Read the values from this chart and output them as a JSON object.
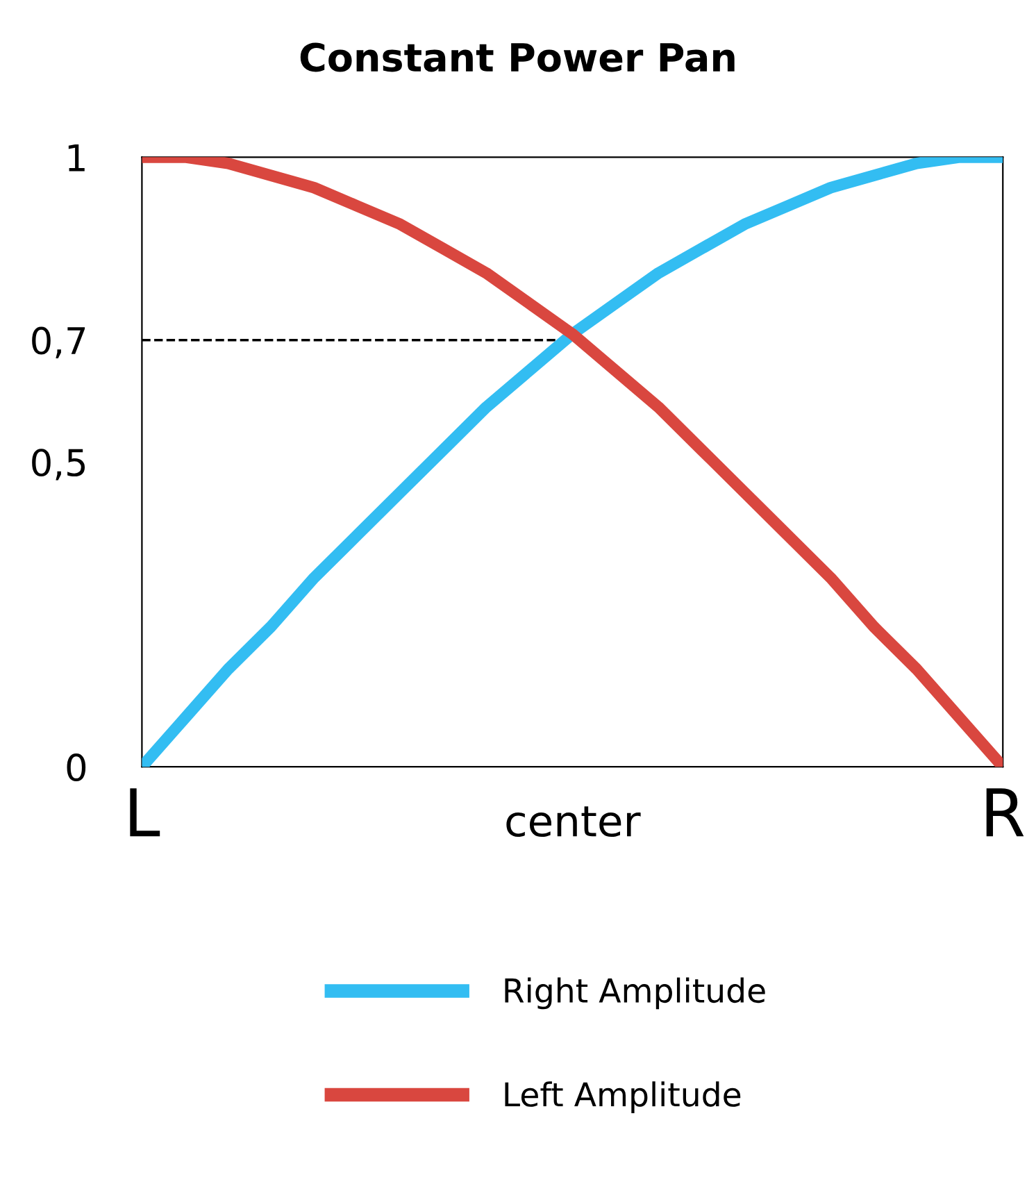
{
  "chart_data": {
    "type": "line",
    "title": "Constant Power Pan",
    "categories": [
      "L",
      null,
      null,
      null,
      null,
      null,
      null,
      null,
      null,
      null,
      "center",
      null,
      null,
      null,
      null,
      null,
      null,
      null,
      null,
      null,
      "R"
    ],
    "series": [
      {
        "name": "Right Amplitude",
        "color": "#33bdf2",
        "values": [
          0,
          0.08,
          0.16,
          0.23,
          0.31,
          0.38,
          0.45,
          0.52,
          0.59,
          0.65,
          0.71,
          0.76,
          0.81,
          0.85,
          0.89,
          0.92,
          0.95,
          0.97,
          0.99,
          1,
          1
        ]
      },
      {
        "name": "Left Amplitude",
        "color": "#d9473f",
        "values": [
          1,
          1,
          0.99,
          0.97,
          0.95,
          0.92,
          0.89,
          0.85,
          0.81,
          0.76,
          0.71,
          0.65,
          0.59,
          0.52,
          0.45,
          0.38,
          0.31,
          0.23,
          0.16,
          0.08,
          0
        ]
      }
    ],
    "ylim": [
      0,
      1
    ],
    "yticks": [
      {
        "value": 0,
        "label": "0"
      },
      {
        "value": 0.5,
        "label": "0,5"
      },
      {
        "value": 0.7,
        "label": "0,7"
      },
      {
        "value": 1,
        "label": "1"
      }
    ],
    "ref_lines": [
      {
        "axis": "y",
        "value": 0.7,
        "label": null,
        "color": "#000000",
        "line_style": "dashed"
      }
    ],
    "grid": false,
    "legend": "bottom",
    "marker": "none",
    "line_style": "solid"
  }
}
